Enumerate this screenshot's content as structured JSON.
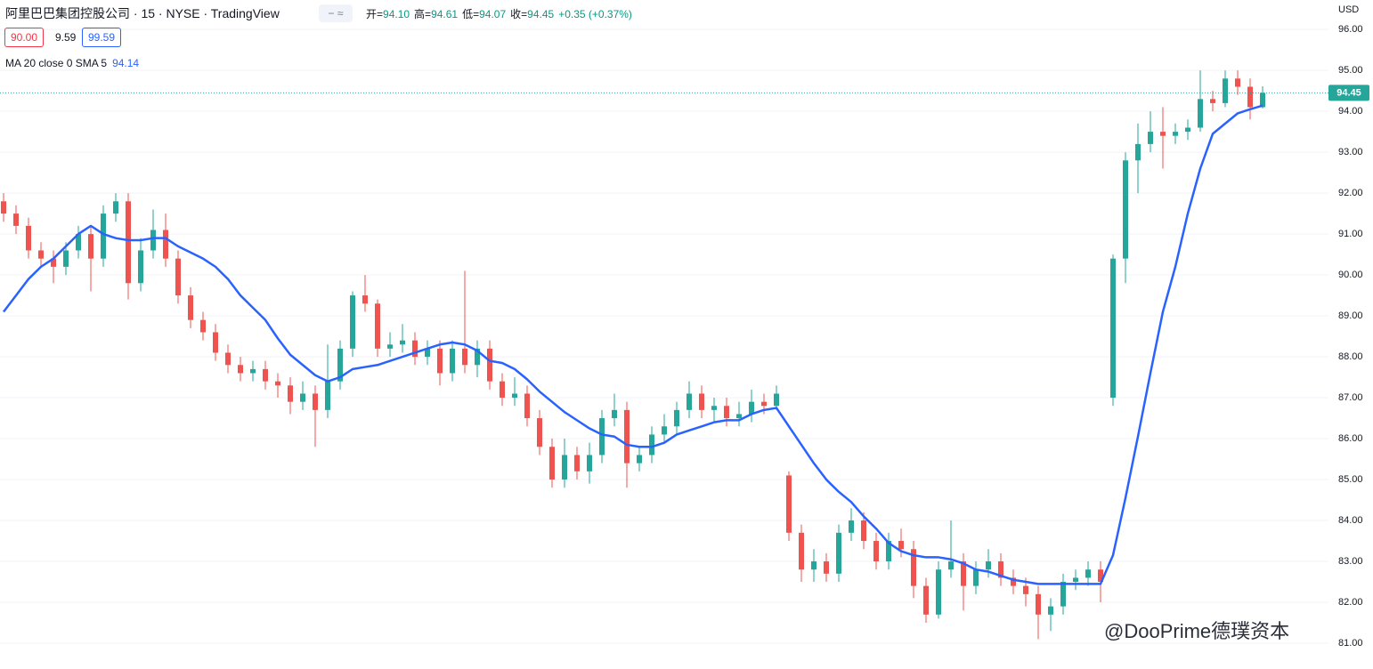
{
  "chart_data": {
    "type": "candlestick",
    "title": "阿里巴巴集团控股公司 · 15 · NYSE · TradingView",
    "ohlc_legend": [
      {
        "label": "开=",
        "value": "94.10"
      },
      {
        "label": "高=",
        "value": "94.61"
      },
      {
        "label": "低=",
        "value": "94.07"
      },
      {
        "label": "收=",
        "value": "94.45"
      }
    ],
    "change": "+0.35 (+0.37%)",
    "order_panel": {
      "sell": "90.00",
      "spread": "9.59",
      "buy": "99.59"
    },
    "currency": "USD",
    "watermark": "@DooPrime德璞资本",
    "up_color": "#26a69a",
    "down_color": "#ef5350",
    "open": [
      91.8,
      91.5,
      91.2,
      90.6,
      90.4,
      90.2,
      90.6,
      91.0,
      90.4,
      91.5,
      91.8,
      89.8,
      90.6,
      91.1,
      90.4,
      89.5,
      88.9,
      88.6,
      88.1,
      87.8,
      87.6,
      87.7,
      87.4,
      87.3,
      86.9,
      87.1,
      86.7,
      87.4,
      88.2,
      89.5,
      89.3,
      88.2,
      88.3,
      88.4,
      88.0,
      88.2,
      87.6,
      88.2,
      87.8,
      88.2,
      87.4,
      87.0,
      87.1,
      86.5,
      85.8,
      85.0,
      85.6,
      85.2,
      85.6,
      86.5,
      86.7,
      85.4,
      85.6,
      86.1,
      86.3,
      86.7,
      87.1,
      86.7,
      86.8,
      86.5,
      86.6,
      86.9,
      86.8,
      85.1,
      83.7,
      82.8,
      83.0,
      82.7,
      83.7,
      84.0,
      83.5,
      83.0,
      83.5,
      83.3,
      82.4,
      81.7,
      82.8,
      83.0,
      82.4,
      82.8,
      83.0,
      82.6,
      82.4,
      82.2,
      81.7,
      81.9,
      82.5,
      82.6,
      82.8,
      87.0,
      90.4,
      92.8,
      93.2,
      93.5,
      93.4,
      93.5,
      93.6,
      94.3,
      94.2,
      94.8,
      94.6,
      94.1
    ],
    "high": [
      92.0,
      91.7,
      91.4,
      90.8,
      90.6,
      90.8,
      91.2,
      91.2,
      91.7,
      92.0,
      92.0,
      90.9,
      91.6,
      91.5,
      90.6,
      89.7,
      89.1,
      88.8,
      88.3,
      88.0,
      87.9,
      87.9,
      87.6,
      87.5,
      87.4,
      87.3,
      88.3,
      88.4,
      89.6,
      90.0,
      89.4,
      88.6,
      88.8,
      88.6,
      88.4,
      88.4,
      88.4,
      90.1,
      88.4,
      88.4,
      87.6,
      87.5,
      87.3,
      86.7,
      86.0,
      86.0,
      85.8,
      85.9,
      86.7,
      87.1,
      86.9,
      85.8,
      86.3,
      86.6,
      86.9,
      87.4,
      87.3,
      87.0,
      87.0,
      86.9,
      87.2,
      87.1,
      87.3,
      85.2,
      83.9,
      83.3,
      83.2,
      83.9,
      84.3,
      84.2,
      83.7,
      83.7,
      83.8,
      83.5,
      82.6,
      83.0,
      84.0,
      83.2,
      83.0,
      83.3,
      83.2,
      82.8,
      82.6,
      82.4,
      82.1,
      82.7,
      82.8,
      83.0,
      83.0,
      90.5,
      93.0,
      93.7,
      94.0,
      94.1,
      93.7,
      93.8,
      95.0,
      94.5,
      95.0,
      95.0,
      94.8,
      94.61
    ],
    "low": [
      91.3,
      91.0,
      90.4,
      90.2,
      89.8,
      90.0,
      90.4,
      89.6,
      90.2,
      91.3,
      89.4,
      89.6,
      90.4,
      90.2,
      89.3,
      88.7,
      88.4,
      87.9,
      87.6,
      87.4,
      87.4,
      87.2,
      87.0,
      86.6,
      86.7,
      85.8,
      86.5,
      87.2,
      88.0,
      89.1,
      88.0,
      88.0,
      88.1,
      87.8,
      87.8,
      87.3,
      87.4,
      87.6,
      87.5,
      87.2,
      86.8,
      86.8,
      86.3,
      85.6,
      84.8,
      84.8,
      85.0,
      84.9,
      85.4,
      86.3,
      84.8,
      85.2,
      85.4,
      85.9,
      86.1,
      86.5,
      86.5,
      86.4,
      86.3,
      86.3,
      86.4,
      86.6,
      86.7,
      83.5,
      82.5,
      82.5,
      82.5,
      82.5,
      83.5,
      83.3,
      82.8,
      82.8,
      83.1,
      82.1,
      81.5,
      81.6,
      82.6,
      81.8,
      82.2,
      82.6,
      82.4,
      82.2,
      81.9,
      81.1,
      81.3,
      81.7,
      82.3,
      82.4,
      82.0,
      86.8,
      89.8,
      92.0,
      93.0,
      92.6,
      93.2,
      93.3,
      93.5,
      94.0,
      94.1,
      94.4,
      93.8,
      94.07
    ],
    "close": [
      91.5,
      91.2,
      90.6,
      90.4,
      90.2,
      90.6,
      91.0,
      90.4,
      91.5,
      91.8,
      89.8,
      90.6,
      91.1,
      90.4,
      89.5,
      88.9,
      88.6,
      88.1,
      87.8,
      87.6,
      87.7,
      87.4,
      87.3,
      86.9,
      87.1,
      86.7,
      87.4,
      88.2,
      89.5,
      89.3,
      88.2,
      88.3,
      88.4,
      88.0,
      88.2,
      87.6,
      88.2,
      87.8,
      88.2,
      87.4,
      87.0,
      87.1,
      86.5,
      85.8,
      85.0,
      85.6,
      85.2,
      85.6,
      86.5,
      86.7,
      85.4,
      85.6,
      86.1,
      86.3,
      86.7,
      87.1,
      86.7,
      86.8,
      86.5,
      86.6,
      86.9,
      86.8,
      87.1,
      83.7,
      82.8,
      83.0,
      82.7,
      83.7,
      84.0,
      83.5,
      83.0,
      83.5,
      83.3,
      82.4,
      81.7,
      82.8,
      83.0,
      82.4,
      82.8,
      83.0,
      82.6,
      82.4,
      82.2,
      81.7,
      81.9,
      82.5,
      82.6,
      82.8,
      82.5,
      90.4,
      92.8,
      93.2,
      93.5,
      93.4,
      93.5,
      93.6,
      94.3,
      94.2,
      94.8,
      94.6,
      94.1,
      94.45
    ],
    "ma": {
      "name": "MA 20 close 0 SMA 5",
      "color": "#2962ff",
      "values": [
        89.1,
        89.5,
        89.9,
        90.2,
        90.4,
        90.7,
        91.0,
        91.2,
        91.0,
        90.9,
        90.85,
        90.85,
        90.9,
        90.9,
        90.7,
        90.55,
        90.4,
        90.2,
        89.9,
        89.5,
        89.2,
        88.9,
        88.45,
        88.05,
        87.8,
        87.55,
        87.4,
        87.5,
        87.7,
        87.75,
        87.8,
        87.9,
        88.0,
        88.1,
        88.2,
        88.3,
        88.35,
        88.3,
        88.15,
        87.9,
        87.85,
        87.7,
        87.45,
        87.15,
        86.9,
        86.65,
        86.45,
        86.25,
        86.1,
        86.05,
        85.85,
        85.8,
        85.8,
        85.9,
        86.1,
        86.2,
        86.3,
        86.4,
        86.45,
        86.45,
        86.6,
        86.7,
        86.75,
        86.3,
        85.85,
        85.4,
        85.0,
        84.7,
        84.45,
        84.1,
        83.8,
        83.45,
        83.25,
        83.15,
        83.1,
        83.1,
        83.05,
        82.95,
        82.8,
        82.75,
        82.65,
        82.55,
        82.5,
        82.45,
        82.45,
        82.45,
        82.45,
        82.45,
        82.45,
        83.15,
        84.55,
        86.05,
        87.6,
        89.1,
        90.2,
        91.5,
        92.6,
        93.45,
        93.7,
        93.95,
        94.05,
        94.14
      ]
    },
    "ylim": [
      80.37,
      96.72
    ],
    "yticks": [
      {
        "value": 81,
        "label": "81.00"
      },
      {
        "value": 82,
        "label": "82.00"
      },
      {
        "value": 83,
        "label": "83.00"
      },
      {
        "value": 84,
        "label": "84.00"
      },
      {
        "value": 85,
        "label": "85.00"
      },
      {
        "value": 86,
        "label": "86.00"
      },
      {
        "value": 87,
        "label": "87.00"
      },
      {
        "value": 88,
        "label": "88.00"
      },
      {
        "value": 89,
        "label": "89.00"
      },
      {
        "value": 90,
        "label": "90.00"
      },
      {
        "value": 91,
        "label": "91.00"
      },
      {
        "value": 92,
        "label": "92.00"
      },
      {
        "value": 93,
        "label": "93.00"
      },
      {
        "value": 94,
        "label": "94.00"
      },
      {
        "value": 95,
        "label": "95.00"
      },
      {
        "value": 96,
        "label": "96.00"
      }
    ],
    "grid": true
  }
}
